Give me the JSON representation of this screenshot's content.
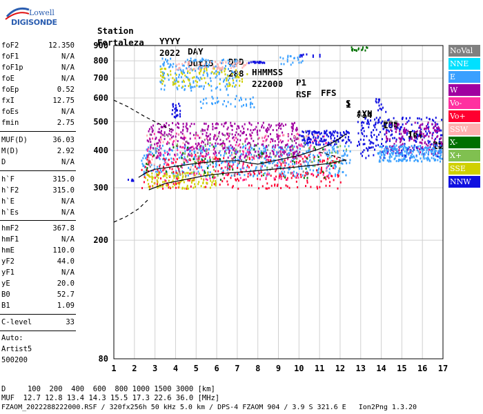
{
  "logo": {
    "line1": "Lowell",
    "line2": "DIGISONDE"
  },
  "header": {
    "labels": [
      "Station",
      "YYYY",
      "DAY",
      "DDD",
      "HHMMSS",
      "P1",
      "FFS",
      "S",
      "AXN",
      "PPS",
      "IGA",
      "PS"
    ],
    "values": [
      "Fortaleza",
      "2022",
      "Out15",
      "288",
      "222000",
      "RSF",
      "1",
      "714",
      "100",
      "10+",
      "11"
    ]
  },
  "params_group1": [
    {
      "name": "foF2",
      "value": "12.350"
    },
    {
      "name": "foF1",
      "value": "N/A"
    },
    {
      "name": "foF1p",
      "value": "N/A"
    },
    {
      "name": "foE",
      "value": "N/A"
    },
    {
      "name": "foEp",
      "value": "0.52"
    },
    {
      "name": "fxI",
      "value": "12.75"
    },
    {
      "name": "foEs",
      "value": "N/A"
    },
    {
      "name": "fmin",
      "value": "2.75"
    }
  ],
  "params_group2": [
    {
      "name": "MUF(D)",
      "value": "36.03"
    },
    {
      "name": "M(D)",
      "value": "2.92"
    },
    {
      "name": "D",
      "value": "N/A"
    }
  ],
  "params_group3": [
    {
      "name": "h`F",
      "value": "315.0"
    },
    {
      "name": "h`F2",
      "value": "315.0"
    },
    {
      "name": "h`E",
      "value": "N/A"
    },
    {
      "name": "h`Es",
      "value": "N/A"
    }
  ],
  "params_group4": [
    {
      "name": "hmF2",
      "value": "367.8"
    },
    {
      "name": "hmF1",
      "value": "N/A"
    },
    {
      "name": "hmE",
      "value": "110.0"
    },
    {
      "name": "yF2",
      "value": "44.0"
    },
    {
      "name": "yF1",
      "value": "N/A"
    },
    {
      "name": "yE",
      "value": "20.0"
    },
    {
      "name": "B0",
      "value": "52.7"
    },
    {
      "name": "B1",
      "value": "1.09"
    }
  ],
  "params_group5": [
    {
      "name": "C-level",
      "value": "33"
    }
  ],
  "auto": {
    "line1": "Auto:",
    "line2": "Artist5",
    "line3": "500200"
  },
  "footer": {
    "d_label": "D",
    "d_values": "100  200  400  600  800 1000 1500 3000 [km]",
    "muf_label": "MUF",
    "muf_values": "12.7 12.8 13.4 14.3 15.5 17.3 22.6 36.0 [MHz]",
    "file_line": "FZAOM_2022288222000.RSF / 320fx256h 50 kHz 5.0 km / DPS-4 FZAOM 904 / 3.9 S 321.6 E   Ion2Png 1.3.20"
  },
  "legend": [
    {
      "label": "NoVal",
      "color": "#808080"
    },
    {
      "label": "NNE",
      "color": "#00e0ff"
    },
    {
      "label": "E",
      "color": "#3aa0ff"
    },
    {
      "label": "W",
      "color": "#a000a0"
    },
    {
      "label": "Vo-",
      "color": "#ff30a0"
    },
    {
      "label": "Vo+",
      "color": "#ff0030"
    },
    {
      "label": "SSW",
      "color": "#ffb0b0"
    },
    {
      "label": "X-",
      "color": "#007000"
    },
    {
      "label": "X+",
      "color": "#80c050"
    },
    {
      "label": "SSE",
      "color": "#d0d000"
    },
    {
      "label": "NNW",
      "color": "#1010e0"
    }
  ],
  "chart_data": {
    "type": "scatter",
    "x_ticks": [
      "1",
      "2",
      "3",
      "4",
      "5",
      "6",
      "7",
      "8",
      "9",
      "10",
      "11",
      "12",
      "13",
      "14",
      "15",
      "16",
      "17"
    ],
    "xlim": [
      1,
      17
    ],
    "y_ticks": [
      "80",
      "200",
      "300",
      "400",
      "500",
      "600",
      "700",
      "800",
      "900"
    ],
    "ylim": [
      80,
      900
    ],
    "y_scale": "log",
    "grid": true,
    "trace_lines": [
      {
        "name": "profile",
        "style": "solid",
        "points": [
          [
            2.2,
            325
          ],
          [
            2.6,
            338
          ],
          [
            3.0,
            346
          ],
          [
            3.5,
            350
          ],
          [
            4.0,
            354
          ],
          [
            5.0,
            362
          ],
          [
            6.0,
            368
          ],
          [
            7.0,
            370
          ],
          [
            7.5,
            364
          ],
          [
            8.0,
            360
          ],
          [
            9.0,
            372
          ],
          [
            10.0,
            385
          ],
          [
            11.0,
            405
          ],
          [
            11.5,
            420
          ],
          [
            12.0,
            440
          ],
          [
            12.3,
            455
          ]
        ]
      },
      {
        "name": "profile-lower",
        "style": "solid",
        "points": [
          [
            2.7,
            295
          ],
          [
            3.5,
            310
          ],
          [
            4.5,
            320
          ],
          [
            5.5,
            330
          ],
          [
            6.5,
            336
          ],
          [
            7.5,
            340
          ],
          [
            8.5,
            345
          ],
          [
            9.5,
            350
          ],
          [
            10.5,
            356
          ],
          [
            11.5,
            362
          ],
          [
            12.3,
            372
          ]
        ]
      },
      {
        "name": "extrapolated-top",
        "style": "dashed",
        "points": [
          [
            1.0,
            590
          ],
          [
            1.7,
            560
          ],
          [
            2.5,
            520
          ],
          [
            3.0,
            500
          ],
          [
            3.5,
            480
          ],
          [
            3.8,
            470
          ]
        ]
      },
      {
        "name": "extrapolated-bottom",
        "style": "dashed",
        "points": [
          [
            1.0,
            230
          ],
          [
            1.6,
            240
          ],
          [
            2.2,
            255
          ],
          [
            2.7,
            275
          ]
        ]
      },
      {
        "name": "virtual-tail",
        "style": "dashed",
        "points": [
          [
            11.0,
            395
          ],
          [
            11.6,
            385
          ],
          [
            12.0,
            378
          ],
          [
            12.3,
            370
          ]
        ]
      }
    ],
    "echo_clusters": [
      {
        "color": "#1010e0",
        "x": [
          1.6,
          2.0
        ],
        "y": [
          318,
          322
        ],
        "n": 8
      },
      {
        "color": "#3aa0ff",
        "x": [
          2.3,
          12.5
        ],
        "y": [
          330,
          420
        ],
        "n": 500
      },
      {
        "color": "#ff0030",
        "x": [
          2.3,
          12.0
        ],
        "y": [
          300,
          390
        ],
        "n": 280
      },
      {
        "color": "#ff30a0",
        "x": [
          2.5,
          11.5
        ],
        "y": [
          320,
          460
        ],
        "n": 220
      },
      {
        "color": "#a000a0",
        "x": [
          2.6,
          10.0
        ],
        "y": [
          380,
          500
        ],
        "n": 420
      },
      {
        "color": "#d0d000",
        "x": [
          2.5,
          6.0
        ],
        "y": [
          300,
          340
        ],
        "n": 120
      },
      {
        "color": "#1010e0",
        "x": [
          10.0,
          12.5
        ],
        "y": [
          420,
          470
        ],
        "n": 140
      },
      {
        "color": "#1010e0",
        "x": [
          12.8,
          17.0
        ],
        "y": [
          380,
          520
        ],
        "n": 260
      },
      {
        "color": "#a000a0",
        "x": [
          14.2,
          17.0
        ],
        "y": [
          390,
          500
        ],
        "n": 160
      },
      {
        "color": "#3aa0ff",
        "x": [
          13.8,
          17.0
        ],
        "y": [
          370,
          420
        ],
        "n": 220
      },
      {
        "color": "#3aa0ff",
        "x": [
          3.2,
          7.0
        ],
        "y": [
          640,
          820
        ],
        "n": 180
      },
      {
        "color": "#d0d000",
        "x": [
          3.2,
          7.5
        ],
        "y": [
          660,
          760
        ],
        "n": 90
      },
      {
        "color": "#ffb0b0",
        "x": [
          4.0,
          7.5
        ],
        "y": [
          750,
          800
        ],
        "n": 60
      },
      {
        "color": "#1010e0",
        "x": [
          7.5,
          8.3
        ],
        "y": [
          792,
          800
        ],
        "n": 20
      },
      {
        "color": "#3aa0ff",
        "x": [
          5.0,
          7.8
        ],
        "y": [
          560,
          620
        ],
        "n": 40
      },
      {
        "color": "#1010e0",
        "x": [
          3.8,
          4.2
        ],
        "y": [
          520,
          580
        ],
        "n": 25
      },
      {
        "color": "#1010e0",
        "x": [
          13.7,
          14.2
        ],
        "y": [
          540,
          600
        ],
        "n": 15
      },
      {
        "color": "#007000",
        "x": [
          12.5,
          13.5
        ],
        "y": [
          870,
          895
        ],
        "n": 15
      },
      {
        "color": "#1010e0",
        "x": [
          10.0,
          11.0
        ],
        "y": [
          830,
          850
        ],
        "n": 12
      },
      {
        "color": "#3aa0ff",
        "x": [
          9.0,
          10.2
        ],
        "y": [
          780,
          840
        ],
        "n": 20
      },
      {
        "color": "#007000",
        "x": [
          2.5,
          12.0
        ],
        "y": [
          320,
          420
        ],
        "n": 60
      },
      {
        "color": "#80c050",
        "x": [
          3.0,
          12.5
        ],
        "y": [
          330,
          430
        ],
        "n": 50
      },
      {
        "color": "#808080",
        "x": [
          2.5,
          10.5
        ],
        "y": [
          330,
          470
        ],
        "n": 60
      },
      {
        "color": "#ffb0b0",
        "x": [
          2.5,
          12.0
        ],
        "y": [
          340,
          460
        ],
        "n": 60
      }
    ]
  }
}
